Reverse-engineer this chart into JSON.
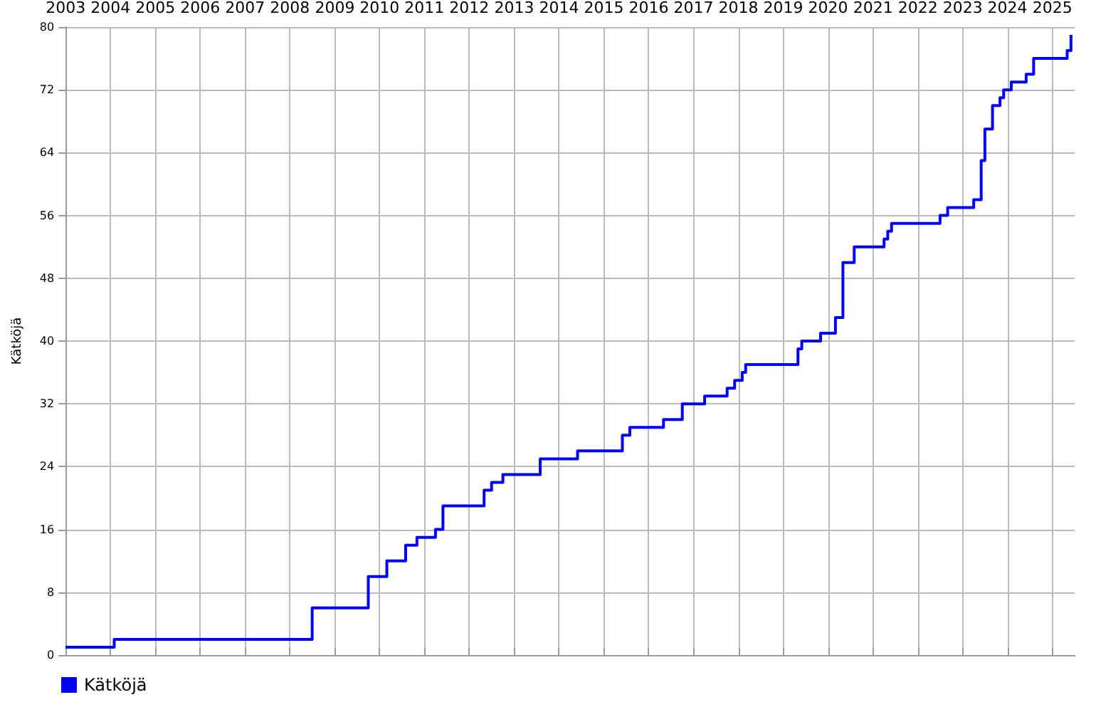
{
  "chart_data": {
    "type": "step",
    "ylabel": "Kätköjä",
    "x": [
      "2003-01",
      "2004-02",
      "2008-07",
      "2009-10",
      "2010-03",
      "2010-08",
      "2010-11",
      "2011-04",
      "2011-06",
      "2012-05",
      "2012-07",
      "2012-10",
      "2013-08",
      "2014-06",
      "2015-06",
      "2015-08",
      "2016-05",
      "2016-10",
      "2017-04",
      "2017-10",
      "2017-12",
      "2018-02",
      "2018-03",
      "2019-05",
      "2019-06",
      "2019-11",
      "2020-03",
      "2020-05",
      "2020-08",
      "2021-04",
      "2021-05",
      "2021-06",
      "2022-07",
      "2022-09",
      "2023-04",
      "2023-06",
      "2023-07",
      "2023-09",
      "2023-11",
      "2023-12",
      "2024-02",
      "2024-06",
      "2024-08",
      "2025-05",
      "2025-06"
    ],
    "series": [
      {
        "name": "Kätköjä",
        "color": "#0000ff",
        "values": [
          1,
          2,
          6,
          10,
          12,
          14,
          15,
          16,
          19,
          21,
          22,
          23,
          25,
          26,
          28,
          29,
          30,
          32,
          33,
          34,
          35,
          36,
          37,
          39,
          40,
          41,
          43,
          50,
          52,
          53,
          54,
          55,
          56,
          57,
          58,
          63,
          67,
          70,
          71,
          72,
          73,
          74,
          76,
          77,
          79
        ]
      }
    ],
    "xlim": [
      "2003-01",
      "2025-07"
    ],
    "xticks": [
      "2003",
      "2004",
      "2005",
      "2006",
      "2007",
      "2008",
      "2009",
      "2010",
      "2011",
      "2012",
      "2013",
      "2014",
      "2015",
      "2016",
      "2017",
      "2018",
      "2019",
      "2020",
      "2021",
      "2022",
      "2023",
      "2024",
      "2025"
    ],
    "ylim": [
      0,
      80
    ],
    "yticks": [
      0,
      8,
      16,
      24,
      32,
      40,
      48,
      56,
      64,
      72,
      80
    ],
    "grid": true,
    "legend": "bottom left",
    "marker": "none",
    "line_style": "solid"
  }
}
